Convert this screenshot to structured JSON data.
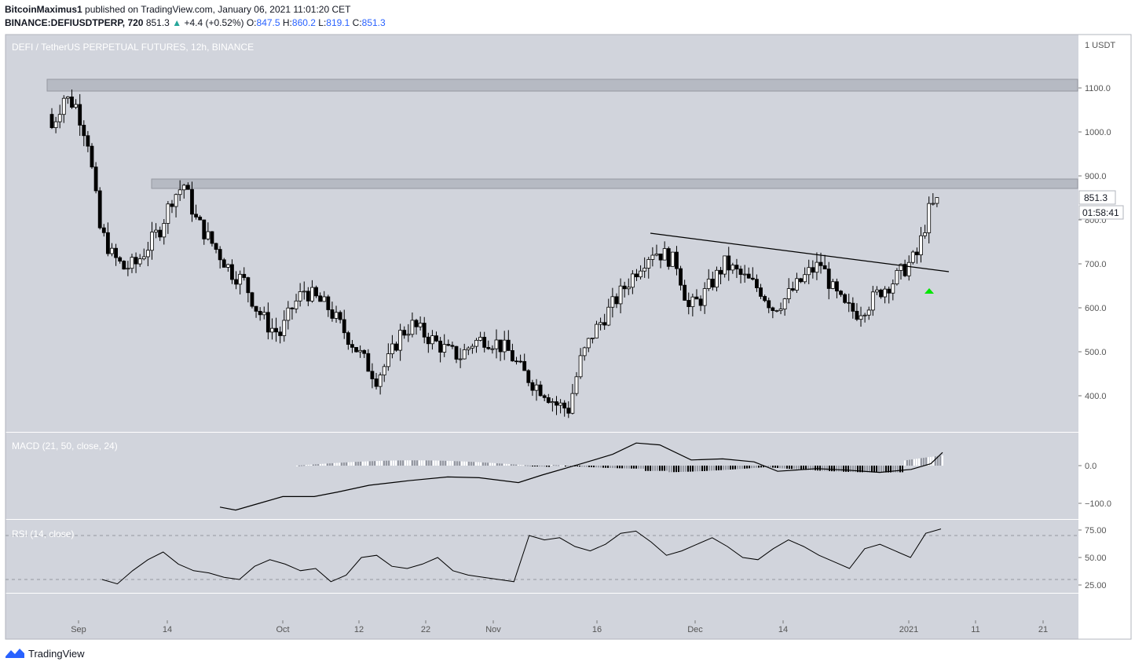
{
  "publisher": {
    "user": "BitcoinMaximus1",
    "text": "published on TradingView.com, January 06, 2021 11:01:20 CET"
  },
  "ticker_line": {
    "symbol": "BINANCE:DEFIUSDTPERP, 720",
    "price": "851.3",
    "arrow": "▲",
    "change": "+4.4 (+0.52%)",
    "o_label": "O:",
    "o": "847.5",
    "h_label": "H:",
    "h": "860.2",
    "l_label": "L:",
    "l": "819.1",
    "c_label": "C:",
    "c": "851.3"
  },
  "main_pane": {
    "title": "DEFI / TetherUS PERPETUAL FUTURES, 12h, BINANCE",
    "price_tag": "851.3",
    "countdown": "01:58:41",
    "top_axis_label": "1 USDT"
  },
  "macd_pane": {
    "title": "MACD (21, 50, close, 24)"
  },
  "rsi_pane": {
    "title": "RSI (14, close)"
  },
  "footer": {
    "brand": "TradingView"
  },
  "colors": {
    "pane_bg": "#d1d4dc",
    "candle": "#000000",
    "resistance_zone": "#b2b5be",
    "breakout_arrow": "#00e600",
    "hist_pos": "#ffffff",
    "hist_neg": "#000000",
    "hist_fade": "#9598a1"
  },
  "chart_data": [
    {
      "type": "candlestick",
      "title": "DEFI / TetherUS PERPETUAL FUTURES, 12h, BINANCE",
      "ylim": [
        320,
        1200
      ],
      "y_ticks": [
        "400.0",
        "500.0",
        "600.0",
        "700.0",
        "800.0",
        "900.0",
        "1000.0",
        "1100.0"
      ],
      "x_ticks": [
        "Sep",
        "14",
        "Oct",
        "12",
        "22",
        "Nov",
        "16",
        "Dec",
        "14",
        "2021",
        "11",
        "21"
      ],
      "last_price": 851.3,
      "resistance_zones": [
        [
          1090,
          1118
        ],
        [
          868,
          890
        ]
      ],
      "trendline": {
        "from": [
          "Nov 24",
          765
        ],
        "to": [
          "Jan 7",
          680
        ]
      },
      "close_series": [
        1010,
        1080,
        1060,
        980,
        780,
        720,
        690,
        700,
        740,
        780,
        850,
        880,
        800,
        760,
        720,
        680,
        660,
        600,
        560,
        540,
        600,
        640,
        620,
        600,
        560,
        520,
        480,
        440,
        480,
        540,
        560,
        540,
        520,
        500,
        490,
        520,
        530,
        520,
        500,
        460,
        430,
        410,
        380,
        370,
        480,
        540,
        580,
        620,
        660,
        700,
        730,
        720,
        700,
        600,
        620,
        660,
        700,
        680,
        660,
        640,
        600,
        620,
        650,
        680,
        700,
        640,
        600,
        590,
        610,
        640,
        660,
        690,
        720,
        820,
        851
      ]
    },
    {
      "type": "line+bar",
      "title": "MACD (21, 50, close, 24)",
      "ylim": [
        -130,
        55
      ],
      "y_ticks": [
        "0.0",
        "−100.0"
      ]
    },
    {
      "type": "line",
      "title": "RSI (14, close)",
      "ylim": [
        10,
        85
      ],
      "y_ticks": [
        "25.00",
        "50.00",
        "75.00"
      ],
      "bands": [
        30,
        70
      ],
      "values": [
        30,
        26,
        38,
        48,
        55,
        44,
        38,
        36,
        32,
        30,
        42,
        48,
        44,
        38,
        40,
        28,
        34,
        50,
        52,
        42,
        40,
        44,
        50,
        38,
        34,
        32,
        30,
        28,
        70,
        66,
        68,
        60,
        56,
        62,
        72,
        74,
        64,
        52,
        56,
        62,
        68,
        60,
        50,
        48,
        58,
        66,
        60,
        52,
        46,
        40,
        58,
        62,
        56,
        50,
        72,
        76
      ]
    }
  ]
}
